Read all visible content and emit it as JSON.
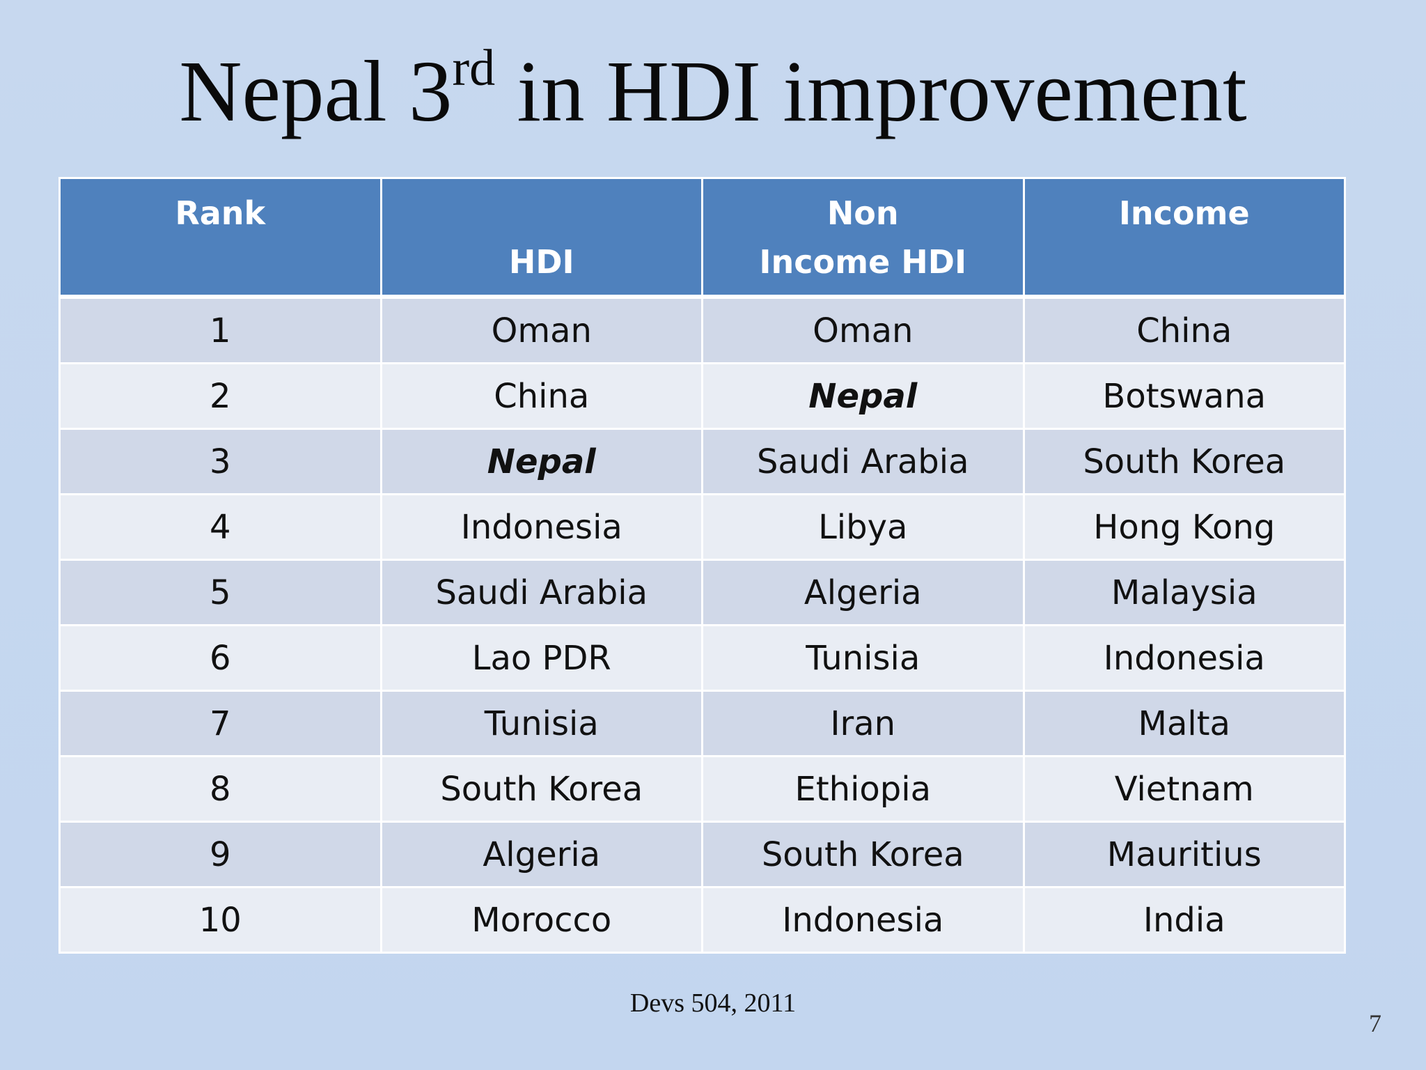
{
  "slide": {
    "title_prefix": "Nepal 3",
    "title_sup": "rd",
    "title_suffix": " in HDI improvement",
    "source": "Devs 504, 2011",
    "page_number": "7"
  },
  "table": {
    "headers": [
      "Rank",
      "HDI",
      "Non Income HDI",
      "Income"
    ],
    "rows": [
      [
        "1",
        "Oman",
        "Oman",
        "China"
      ],
      [
        "2",
        "China",
        "Nepal",
        "Botswana"
      ],
      [
        "3",
        "Nepal",
        "Saudi Arabia",
        "South Korea"
      ],
      [
        "4",
        "Indonesia",
        "Libya",
        "Hong Kong"
      ],
      [
        "5",
        "Saudi Arabia",
        "Algeria",
        "Malaysia"
      ],
      [
        "6",
        "Lao PDR",
        "Tunisia",
        "Indonesia"
      ],
      [
        "7",
        "Tunisia",
        "Iran",
        "Malta"
      ],
      [
        "8",
        "South Korea",
        "Ethiopia",
        "Vietnam"
      ],
      [
        "9",
        "Algeria",
        "South Korea",
        "Mauritius"
      ],
      [
        "10",
        "Morocco",
        "Indonesia",
        "India"
      ]
    ],
    "highlight_text": "Nepal",
    "colors": {
      "header_bg": "#4f81bd",
      "row_odd_bg": "#d0d8e8",
      "row_even_bg": "#e9edf4",
      "slide_bg": "#c5d7ef"
    }
  }
}
